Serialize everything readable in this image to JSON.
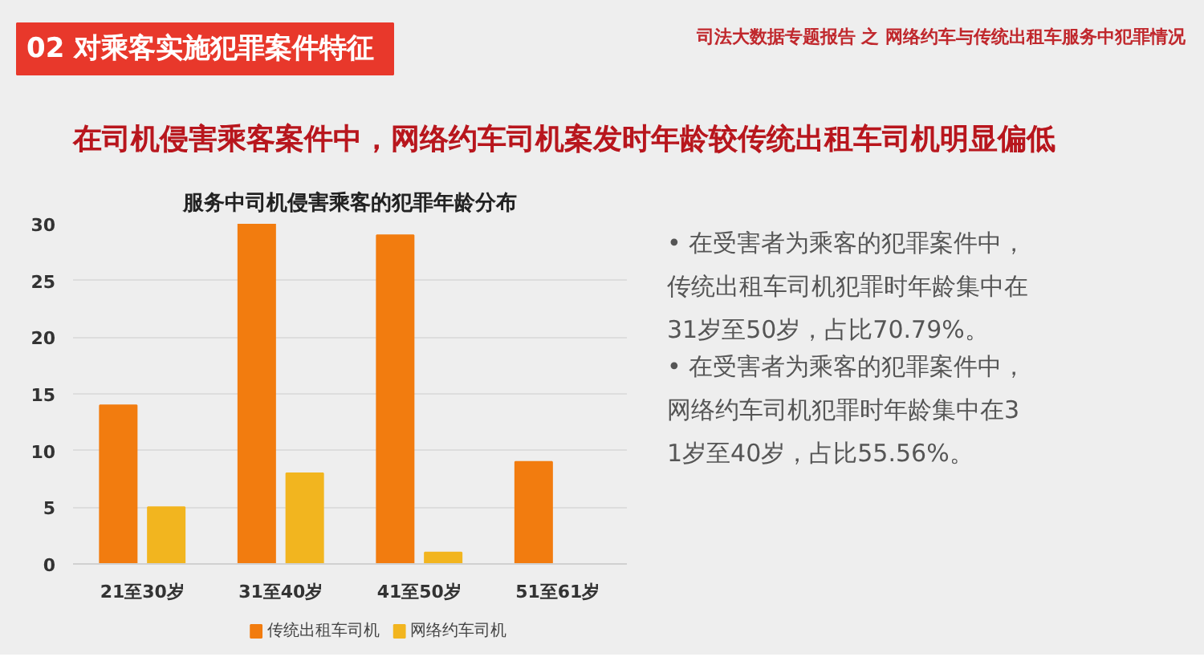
{
  "chart_data": {
    "type": "bar",
    "title": "服务中司机侵害乘客的犯罪年龄分布",
    "categories": [
      "21至30岁",
      "31至40岁",
      "41至50岁",
      "51至61岁"
    ],
    "series": [
      {
        "name": "传统出租车司机",
        "color": "#f27c0f",
        "values": [
          14,
          30,
          29,
          9
        ]
      },
      {
        "name": "网络约车司机",
        "color": "#f2b51f",
        "values": [
          5,
          8,
          1,
          0
        ]
      }
    ],
    "ylim": [
      0,
      30
    ],
    "yticks": [
      0,
      5,
      10,
      15,
      20,
      25,
      30
    ],
    "grid": "y",
    "legend": "bottom",
    "annotations": [
      "02  对乘客实施犯罪案件特征",
      "司法大数据专题报告 之 网络约车与传统出租车服务中犯罪情况",
      "在司机侵害乘客案件中，网络约车司机案发时年龄较传统出租车司机明显偏低",
      "• 在受害者为乘客的犯罪案件中，传统出租车司机犯罪时年龄集中在31岁至50岁，占比70.79%。",
      "• 在受害者为乘客的犯罪案件中，网络约车司机犯罪时年龄集中在31岁至40岁，占比55.56%。"
    ]
  }
}
